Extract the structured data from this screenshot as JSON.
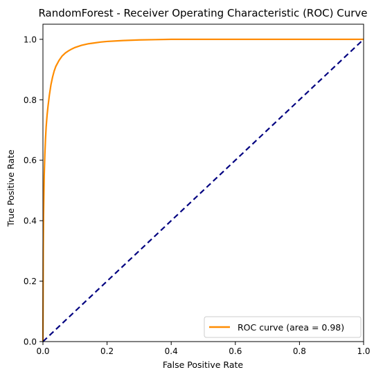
{
  "chart_data": {
    "type": "line",
    "title": "RandomForest - Receiver Operating Characteristic (ROC) Curve",
    "xlabel": "False Positive Rate",
    "ylabel": "True Positive Rate",
    "xlim": [
      0.0,
      1.0
    ],
    "ylim": [
      0.0,
      1.05
    ],
    "x_ticks": [
      "0.0",
      "0.2",
      "0.4",
      "0.6",
      "0.8",
      "1.0"
    ],
    "y_ticks": [
      "0.0",
      "0.2",
      "0.4",
      "0.6",
      "0.8",
      "1.0"
    ],
    "grid": false,
    "legend_position": "lower-right",
    "series": [
      {
        "name": "ROC curve (area = 0.98)",
        "color": "#ff8c00",
        "style": "solid",
        "x": [
          0.0,
          0.001,
          0.002,
          0.004,
          0.006,
          0.008,
          0.01,
          0.013,
          0.016,
          0.02,
          0.025,
          0.03,
          0.035,
          0.04,
          0.05,
          0.06,
          0.07,
          0.08,
          0.09,
          0.1,
          0.12,
          0.14,
          0.16,
          0.18,
          0.2,
          0.25,
          0.3,
          0.35,
          0.4,
          0.5,
          0.6,
          0.7,
          0.8,
          0.9,
          1.0
        ],
        "y": [
          0.0,
          0.3,
          0.42,
          0.55,
          0.62,
          0.67,
          0.71,
          0.75,
          0.78,
          0.815,
          0.85,
          0.875,
          0.895,
          0.91,
          0.93,
          0.945,
          0.955,
          0.962,
          0.968,
          0.973,
          0.98,
          0.985,
          0.988,
          0.991,
          0.993,
          0.996,
          0.998,
          0.999,
          1.0,
          1.0,
          1.0,
          1.0,
          1.0,
          1.0,
          1.0
        ]
      },
      {
        "name": "",
        "color": "#000080",
        "style": "dashed",
        "x": [
          0.0,
          1.0
        ],
        "y": [
          0.0,
          1.0
        ]
      }
    ]
  }
}
